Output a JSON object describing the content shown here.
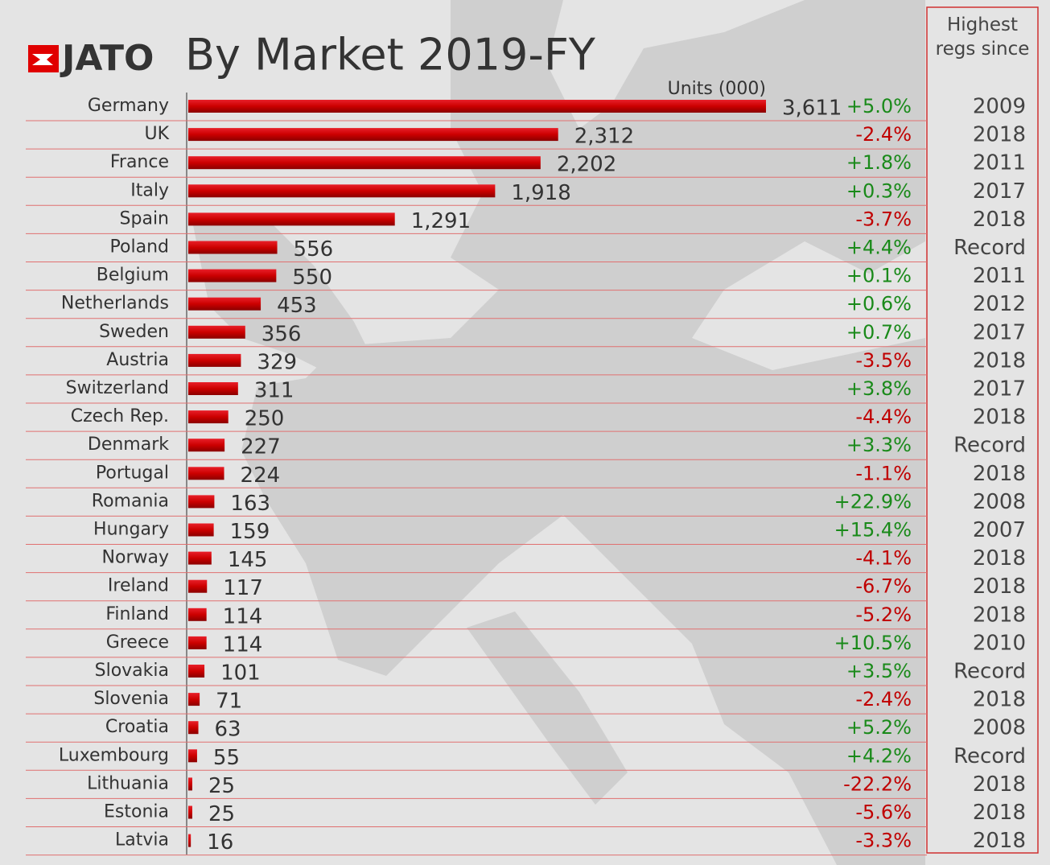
{
  "chart_data": {
    "type": "bar",
    "logo": "JATO",
    "title": "By Market 2019-FY",
    "axis_label": "Units (000)",
    "color": "#d40000",
    "categories": [
      "Germany",
      "UK",
      "France",
      "Italy",
      "Spain",
      "Poland",
      "Belgium",
      "Netherlands",
      "Sweden",
      "Austria",
      "Switzerland",
      "Czech Rep.",
      "Denmark",
      "Portugal",
      "Romania",
      "Hungary",
      "Norway",
      "Ireland",
      "Finland",
      "Greece",
      "Slovakia",
      "Slovenia",
      "Croatia",
      "Luxembourg",
      "Lithuania",
      "Estonia",
      "Latvia"
    ],
    "values": [
      3611,
      2312,
      2202,
      1918,
      1291,
      556,
      550,
      453,
      356,
      329,
      311,
      250,
      227,
      224,
      163,
      159,
      145,
      117,
      114,
      114,
      101,
      71,
      63,
      55,
      25,
      25,
      16
    ],
    "value_labels": [
      "3,611",
      "2,312",
      "2,202",
      "1,918",
      "1,291",
      "556",
      "550",
      "453",
      "356",
      "329",
      "311",
      "250",
      "227",
      "224",
      "163",
      "159",
      "145",
      "117",
      "114",
      "114",
      "101",
      "71",
      "63",
      "55",
      "25",
      "25",
      "16"
    ],
    "changes": [
      5.0,
      -2.4,
      1.8,
      0.3,
      -3.7,
      4.4,
      0.1,
      0.6,
      0.7,
      -3.5,
      3.8,
      -4.4,
      3.3,
      -1.1,
      22.9,
      15.4,
      -4.1,
      -6.7,
      -5.2,
      10.5,
      3.5,
      -2.4,
      5.2,
      4.2,
      -22.2,
      -5.6,
      -3.3
    ],
    "change_labels": [
      "+5.0%",
      "-2.4%",
      "+1.8%",
      "+0.3%",
      "-3.7%",
      "+4.4%",
      "+0.1%",
      "+0.6%",
      "+0.7%",
      "-3.5%",
      "+3.8%",
      "-4.4%",
      "+3.3%",
      "-1.1%",
      "+22.9%",
      "+15.4%",
      "-4.1%",
      "-6.7%",
      "-5.2%",
      "+10.5%",
      "+3.5%",
      "-2.4%",
      "+5.2%",
      "+4.2%",
      "-22.2%",
      "-5.6%",
      "-3.3%"
    ],
    "since_header": "Highest regs since",
    "since": [
      "2009",
      "2018",
      "2011",
      "2017",
      "2018",
      "Record",
      "2011",
      "2012",
      "2017",
      "2018",
      "2017",
      "2018",
      "Record",
      "2018",
      "2008",
      "2007",
      "2018",
      "2018",
      "2018",
      "2010",
      "Record",
      "2018",
      "2008",
      "Record",
      "2018",
      "2018",
      "2018"
    ]
  }
}
